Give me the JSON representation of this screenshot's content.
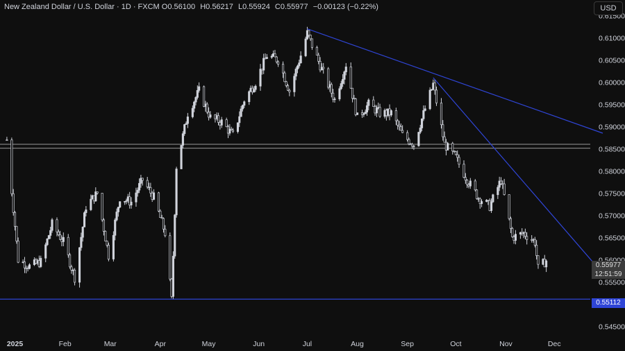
{
  "legend": {
    "title": "New Zealand Dollar / U.S. Dollar · 1D · FXCM",
    "o_label": "O",
    "o_value": "0.56100",
    "h_label": "H",
    "h_value": "0.56217",
    "l_label": "L",
    "l_value": "0.55924",
    "c_label": "C",
    "c_value": "0.55977",
    "change": "−0.00123 (−0.22%)"
  },
  "currency_button": "USD",
  "last_price": {
    "value": "0.55977",
    "countdown": "12:51:59"
  },
  "level_label": "0.55112",
  "colors": {
    "background": "#0f0f0f",
    "candle": "#d1d4dc",
    "trendline": "#2f45d6",
    "level": "#2f45d6",
    "zone": "#c8c8c8"
  },
  "chart_data": {
    "type": "candlestick",
    "title": "New Zealand Dollar / U.S. Dollar · 1D · FXCM",
    "x_ticks": [
      "2025",
      "Feb",
      "Mar",
      "Apr",
      "May",
      "Jun",
      "Jul",
      "Aug",
      "Sep",
      "Oct",
      "Nov",
      "Dec"
    ],
    "y_ticks": [
      "0.61500",
      "0.61000",
      "0.60500",
      "0.60000",
      "0.59500",
      "0.59000",
      "0.58500",
      "0.58000",
      "0.57500",
      "0.57000",
      "0.56500",
      "0.56000",
      "0.55500",
      "0.55000",
      "0.54500"
    ],
    "ylim": [
      0.5435,
      0.6185
    ],
    "close_path": [
      [
        "2024-12-27",
        0.587
      ],
      [
        "2025-01-03",
        0.56
      ],
      [
        "2025-01-10",
        0.5585
      ],
      [
        "2025-01-17",
        0.5595
      ],
      [
        "2025-01-24",
        0.568
      ],
      [
        "2025-01-31",
        0.564
      ],
      [
        "2025-02-07",
        0.556
      ],
      [
        "2025-02-14",
        0.572
      ],
      [
        "2025-02-21",
        0.575
      ],
      [
        "2025-02-28",
        0.561
      ],
      [
        "2025-03-07",
        0.574
      ],
      [
        "2025-03-14",
        0.573
      ],
      [
        "2025-03-21",
        0.578
      ],
      [
        "2025-03-28",
        0.574
      ],
      [
        "2025-04-04",
        0.566
      ],
      [
        "2025-04-08",
        0.551
      ],
      [
        "2025-04-11",
        0.581
      ],
      [
        "2025-04-18",
        0.593
      ],
      [
        "2025-04-25",
        0.598
      ],
      [
        "2025-05-02",
        0.592
      ],
      [
        "2025-05-09",
        0.591
      ],
      [
        "2025-05-16",
        0.588
      ],
      [
        "2025-05-23",
        0.596
      ],
      [
        "2025-05-30",
        0.6
      ],
      [
        "2025-06-06",
        0.606
      ],
      [
        "2025-06-13",
        0.605
      ],
      [
        "2025-06-20",
        0.598
      ],
      [
        "2025-06-27",
        0.606
      ],
      [
        "2025-07-01",
        0.611
      ],
      [
        "2025-07-11",
        0.602
      ],
      [
        "2025-07-18",
        0.596
      ],
      [
        "2025-07-25",
        0.604
      ],
      [
        "2025-08-01",
        0.592
      ],
      [
        "2025-08-08",
        0.595
      ],
      [
        "2025-08-15",
        0.593
      ],
      [
        "2025-08-22",
        0.593
      ],
      [
        "2025-08-29",
        0.588
      ],
      [
        "2025-09-05",
        0.586
      ],
      [
        "2025-09-12",
        0.594
      ],
      [
        "2025-09-17",
        0.5995
      ],
      [
        "2025-09-24",
        0.586
      ],
      [
        "2025-10-01",
        0.583
      ],
      [
        "2025-10-08",
        0.578
      ],
      [
        "2025-10-15",
        0.574
      ],
      [
        "2025-10-22",
        0.572
      ],
      [
        "2025-10-29",
        0.578
      ],
      [
        "2025-11-05",
        0.565
      ],
      [
        "2025-11-12",
        0.566
      ],
      [
        "2025-11-19",
        0.564
      ],
      [
        "2025-11-21",
        0.558
      ],
      [
        "2025-11-26",
        0.5598
      ]
    ],
    "horizontal_levels": [
      0.5851,
      0.586
    ],
    "support_level": 0.55112,
    "trendlines": [
      {
        "from": [
          "2025-07-01",
          0.612
        ],
        "to": [
          "2025-12-31",
          0.5885
        ]
      },
      {
        "from": [
          "2025-09-17",
          0.601
        ],
        "to": [
          "2025-12-26",
          0.559
        ]
      }
    ],
    "last_close": 0.55977,
    "grid": false
  }
}
